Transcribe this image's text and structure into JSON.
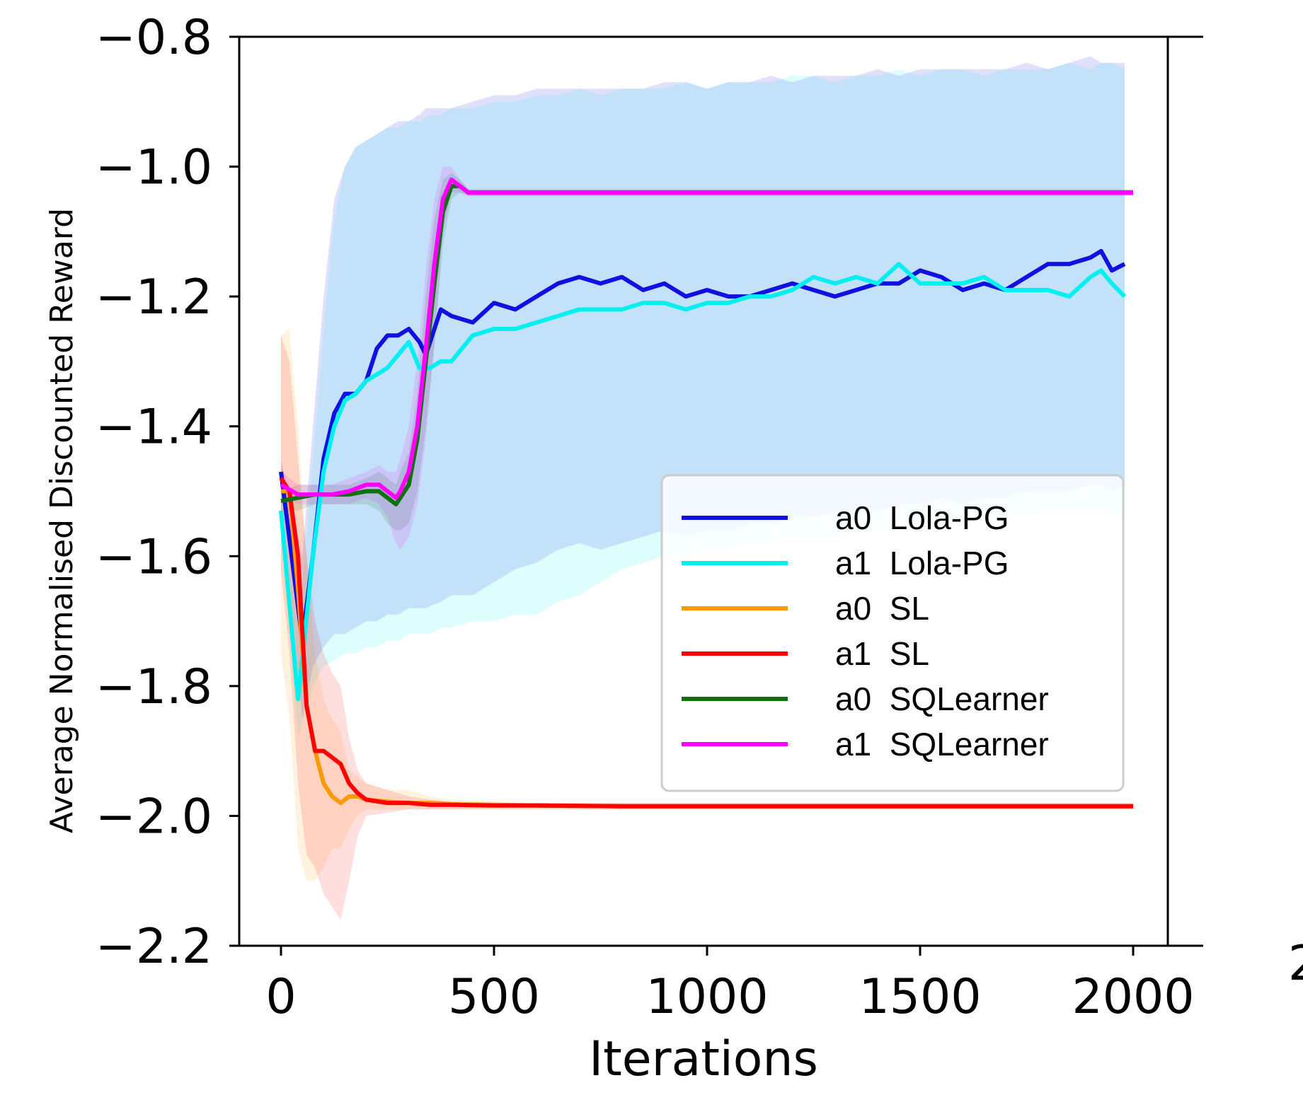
{
  "chart_data": {
    "type": "line",
    "title": "",
    "xlabel": "Iterations",
    "ylabel": "Average Normalised Discounted Reward",
    "xlim": [
      -100,
      2080
    ],
    "ylim": [
      -2.2,
      -0.8
    ],
    "xticks": [
      0,
      500,
      1000,
      1500,
      2000
    ],
    "xtick_labels": [
      "0",
      "500",
      "1000",
      "1500",
      "2000"
    ],
    "yticks": [
      -0.8,
      -1.0,
      -1.2,
      -1.4,
      -1.6,
      -1.8,
      -2.0,
      -2.2
    ],
    "ytick_labels": [
      "−0.8",
      "−1.0",
      "−1.2",
      "−1.4",
      "−1.6",
      "−1.8",
      "−2.0",
      "−2.2"
    ],
    "grid": false,
    "legend_position": "center-right",
    "edge_fragment_label": "2",
    "series": [
      {
        "name": "a0  Lola-PG",
        "color": "#1010e0",
        "x": [
          0,
          50,
          75,
          100,
          125,
          150,
          175,
          200,
          225,
          250,
          275,
          300,
          325,
          340,
          375,
          400,
          450,
          500,
          550,
          600,
          650,
          700,
          750,
          800,
          850,
          900,
          950,
          1000,
          1050,
          1100,
          1150,
          1200,
          1250,
          1300,
          1350,
          1400,
          1450,
          1500,
          1550,
          1600,
          1650,
          1700,
          1750,
          1800,
          1850,
          1900,
          1925,
          1950,
          1980
        ],
        "y": [
          -1.47,
          -1.73,
          -1.6,
          -1.45,
          -1.38,
          -1.35,
          -1.35,
          -1.33,
          -1.28,
          -1.26,
          -1.26,
          -1.25,
          -1.27,
          -1.29,
          -1.22,
          -1.23,
          -1.24,
          -1.21,
          -1.22,
          -1.2,
          -1.18,
          -1.17,
          -1.18,
          -1.17,
          -1.19,
          -1.18,
          -1.2,
          -1.19,
          -1.2,
          -1.2,
          -1.19,
          -1.18,
          -1.19,
          -1.2,
          -1.19,
          -1.18,
          -1.18,
          -1.16,
          -1.17,
          -1.19,
          -1.18,
          -1.19,
          -1.17,
          -1.15,
          -1.15,
          -1.14,
          -1.13,
          -1.16,
          -1.15
        ],
        "band_upper": [
          -1.45,
          -1.6,
          -1.4,
          -1.2,
          -1.05,
          -1.0,
          -0.97,
          -0.96,
          -0.95,
          -0.94,
          -0.93,
          -0.93,
          -0.92,
          -0.91,
          -0.91,
          -0.91,
          -0.9,
          -0.89,
          -0.89,
          -0.88,
          -0.88,
          -0.88,
          -0.88,
          -0.88,
          -0.88,
          -0.87,
          -0.87,
          -0.88,
          -0.87,
          -0.87,
          -0.86,
          -0.87,
          -0.86,
          -0.86,
          -0.86,
          -0.85,
          -0.86,
          -0.85,
          -0.85,
          -0.85,
          -0.85,
          -0.85,
          -0.84,
          -0.85,
          -0.84,
          -0.83,
          -0.84,
          -0.84,
          -0.84
        ],
        "band_lower": [
          -1.49,
          -1.85,
          -1.77,
          -1.74,
          -1.72,
          -1.72,
          -1.71,
          -1.7,
          -1.7,
          -1.69,
          -1.69,
          -1.68,
          -1.68,
          -1.68,
          -1.67,
          -1.66,
          -1.66,
          -1.64,
          -1.62,
          -1.61,
          -1.59,
          -1.58,
          -1.59,
          -1.58,
          -1.57,
          -1.56,
          -1.57,
          -1.56,
          -1.56,
          -1.55,
          -1.55,
          -1.54,
          -1.54,
          -1.53,
          -1.53,
          -1.53,
          -1.52,
          -1.52,
          -1.51,
          -1.52,
          -1.51,
          -1.51,
          -1.5,
          -1.5,
          -1.5,
          -1.49,
          -1.49,
          -1.5,
          -1.49
        ]
      },
      {
        "name": "a1  Lola-PG",
        "color": "#00f0f0",
        "x": [
          0,
          40,
          75,
          100,
          125,
          150,
          175,
          200,
          225,
          250,
          275,
          300,
          325,
          350,
          375,
          400,
          450,
          500,
          550,
          600,
          650,
          700,
          750,
          800,
          850,
          900,
          950,
          1000,
          1050,
          1100,
          1150,
          1200,
          1250,
          1300,
          1350,
          1400,
          1450,
          1500,
          1550,
          1600,
          1650,
          1700,
          1750,
          1800,
          1850,
          1900,
          1925,
          1950,
          1980
        ],
        "y": [
          -1.53,
          -1.82,
          -1.6,
          -1.47,
          -1.4,
          -1.36,
          -1.35,
          -1.33,
          -1.32,
          -1.31,
          -1.29,
          -1.27,
          -1.31,
          -1.31,
          -1.3,
          -1.3,
          -1.26,
          -1.25,
          -1.25,
          -1.24,
          -1.23,
          -1.22,
          -1.22,
          -1.22,
          -1.21,
          -1.21,
          -1.22,
          -1.21,
          -1.21,
          -1.2,
          -1.2,
          -1.19,
          -1.17,
          -1.18,
          -1.17,
          -1.18,
          -1.15,
          -1.18,
          -1.18,
          -1.18,
          -1.17,
          -1.19,
          -1.19,
          -1.19,
          -1.2,
          -1.17,
          -1.16,
          -1.18,
          -1.2
        ],
        "band_upper": [
          -1.51,
          -1.72,
          -1.45,
          -1.25,
          -1.08,
          -1.0,
          -0.97,
          -0.96,
          -0.95,
          -0.94,
          -0.94,
          -0.93,
          -0.93,
          -0.92,
          -0.92,
          -0.91,
          -0.91,
          -0.9,
          -0.9,
          -0.89,
          -0.89,
          -0.88,
          -0.89,
          -0.88,
          -0.88,
          -0.88,
          -0.87,
          -0.88,
          -0.87,
          -0.87,
          -0.87,
          -0.86,
          -0.86,
          -0.87,
          -0.86,
          -0.86,
          -0.85,
          -0.86,
          -0.85,
          -0.85,
          -0.86,
          -0.85,
          -0.85,
          -0.85,
          -0.84,
          -0.85,
          -0.84,
          -0.84,
          -0.85
        ],
        "band_lower": [
          -1.55,
          -1.88,
          -1.8,
          -1.77,
          -1.76,
          -1.75,
          -1.75,
          -1.74,
          -1.74,
          -1.73,
          -1.73,
          -1.72,
          -1.72,
          -1.72,
          -1.71,
          -1.71,
          -1.7,
          -1.7,
          -1.69,
          -1.69,
          -1.67,
          -1.66,
          -1.64,
          -1.62,
          -1.61,
          -1.6,
          -1.6,
          -1.59,
          -1.59,
          -1.58,
          -1.58,
          -1.57,
          -1.57,
          -1.57,
          -1.56,
          -1.56,
          -1.55,
          -1.55,
          -1.55,
          -1.54,
          -1.54,
          -1.54,
          -1.54,
          -1.53,
          -1.53,
          -1.53,
          -1.53,
          -1.54,
          -1.54
        ]
      },
      {
        "name": "a0  SL",
        "color": "#ff9900",
        "x": [
          0,
          20,
          40,
          60,
          80,
          100,
          120,
          140,
          160,
          180,
          200,
          250,
          300,
          350,
          400,
          500,
          600,
          800,
          1000,
          1500,
          2000
        ],
        "y": [
          -1.5,
          -1.5,
          -1.65,
          -1.83,
          -1.9,
          -1.95,
          -1.97,
          -1.98,
          -1.97,
          -1.97,
          -1.975,
          -1.978,
          -1.98,
          -1.98,
          -1.982,
          -1.983,
          -1.984,
          -1.985,
          -1.985,
          -1.985,
          -1.985
        ],
        "band_upper": [
          -1.26,
          -1.25,
          -1.4,
          -1.6,
          -1.75,
          -1.82,
          -1.85,
          -1.87,
          -1.93,
          -1.94,
          -1.95,
          -1.96,
          -1.96,
          -1.97,
          -1.975,
          -1.978,
          -1.98,
          -1.98,
          -1.98,
          -1.98,
          -1.98
        ],
        "band_lower": [
          -1.75,
          -1.85,
          -2.05,
          -2.1,
          -2.1,
          -2.08,
          -2.05,
          -2.05,
          -2.02,
          -2.0,
          -1.99,
          -1.99,
          -1.99,
          -1.99,
          -1.99,
          -1.99,
          -1.99,
          -1.99,
          -1.99,
          -1.99,
          -1.99
        ]
      },
      {
        "name": "a1  SL",
        "color": "#ff0000",
        "x": [
          0,
          20,
          40,
          60,
          80,
          100,
          120,
          140,
          160,
          180,
          200,
          250,
          300,
          350,
          400,
          500,
          600,
          800,
          1000,
          1500,
          2000
        ],
        "y": [
          -1.48,
          -1.5,
          -1.6,
          -1.83,
          -1.9,
          -1.9,
          -1.91,
          -1.92,
          -1.95,
          -1.965,
          -1.975,
          -1.98,
          -1.98,
          -1.983,
          -1.983,
          -1.984,
          -1.984,
          -1.985,
          -1.985,
          -1.985,
          -1.985
        ],
        "band_upper": [
          -1.26,
          -1.3,
          -1.45,
          -1.6,
          -1.7,
          -1.75,
          -1.78,
          -1.8,
          -1.88,
          -1.93,
          -1.95,
          -1.96,
          -1.97,
          -1.975,
          -1.978,
          -1.98,
          -1.98,
          -1.98,
          -1.98,
          -1.98,
          -1.98
        ],
        "band_lower": [
          -1.62,
          -1.75,
          -1.95,
          -2.06,
          -2.08,
          -2.12,
          -2.14,
          -2.16,
          -2.1,
          -2.03,
          -2.0,
          -1.995,
          -1.99,
          -1.99,
          -1.99,
          -1.99,
          -1.99,
          -1.99,
          -1.99,
          -1.99,
          -1.99
        ]
      },
      {
        "name": "a0  SQLearner",
        "color": "#107010",
        "x": [
          0,
          40,
          80,
          120,
          160,
          200,
          230,
          250,
          270,
          280,
          300,
          320,
          340,
          360,
          380,
          400,
          420,
          440,
          500,
          600,
          800,
          1000,
          1200,
          1500,
          1800,
          2000
        ],
        "y": [
          -1.515,
          -1.51,
          -1.505,
          -1.505,
          -1.505,
          -1.5,
          -1.5,
          -1.51,
          -1.52,
          -1.51,
          -1.49,
          -1.42,
          -1.3,
          -1.18,
          -1.07,
          -1.03,
          -1.03,
          -1.04,
          -1.04,
          -1.04,
          -1.04,
          -1.04,
          -1.04,
          -1.04,
          -1.04,
          -1.04
        ],
        "band_upper": [
          -1.5,
          -1.49,
          -1.49,
          -1.49,
          -1.49,
          -1.48,
          -1.47,
          -1.48,
          -1.49,
          -1.47,
          -1.44,
          -1.35,
          -1.2,
          -1.08,
          -1.02,
          -1.01,
          -1.02,
          -1.035,
          -1.035,
          -1.035,
          -1.035,
          -1.035,
          -1.035,
          -1.035,
          -1.035,
          -1.035
        ],
        "band_lower": [
          -1.53,
          -1.53,
          -1.52,
          -1.52,
          -1.52,
          -1.52,
          -1.53,
          -1.55,
          -1.56,
          -1.56,
          -1.55,
          -1.5,
          -1.4,
          -1.28,
          -1.12,
          -1.05,
          -1.04,
          -1.045,
          -1.045,
          -1.045,
          -1.045,
          -1.045,
          -1.045,
          -1.045,
          -1.045,
          -1.045
        ]
      },
      {
        "name": "a1  SQLearner",
        "color": "#ff00ff",
        "x": [
          0,
          40,
          80,
          120,
          160,
          200,
          230,
          250,
          270,
          280,
          300,
          320,
          340,
          360,
          380,
          400,
          420,
          440,
          500,
          600,
          800,
          1000,
          1200,
          1500,
          1800,
          2000
        ],
        "y": [
          -1.49,
          -1.505,
          -1.505,
          -1.505,
          -1.5,
          -1.49,
          -1.49,
          -1.5,
          -1.51,
          -1.5,
          -1.47,
          -1.4,
          -1.28,
          -1.15,
          -1.05,
          -1.02,
          -1.03,
          -1.04,
          -1.04,
          -1.04,
          -1.04,
          -1.04,
          -1.04,
          -1.04,
          -1.04,
          -1.04
        ],
        "band_upper": [
          -1.47,
          -1.49,
          -1.49,
          -1.49,
          -1.48,
          -1.47,
          -1.46,
          -1.47,
          -1.47,
          -1.45,
          -1.4,
          -1.3,
          -1.16,
          -1.05,
          -1.0,
          -1.0,
          -1.02,
          -1.035,
          -1.035,
          -1.035,
          -1.035,
          -1.035,
          -1.035,
          -1.035,
          -1.035,
          -1.035
        ],
        "band_lower": [
          -1.51,
          -1.52,
          -1.52,
          -1.52,
          -1.52,
          -1.51,
          -1.52,
          -1.54,
          -1.58,
          -1.59,
          -1.57,
          -1.52,
          -1.42,
          -1.27,
          -1.1,
          -1.04,
          -1.04,
          -1.045,
          -1.045,
          -1.045,
          -1.045,
          -1.045,
          -1.045,
          -1.045,
          -1.045,
          -1.045
        ]
      }
    ]
  }
}
